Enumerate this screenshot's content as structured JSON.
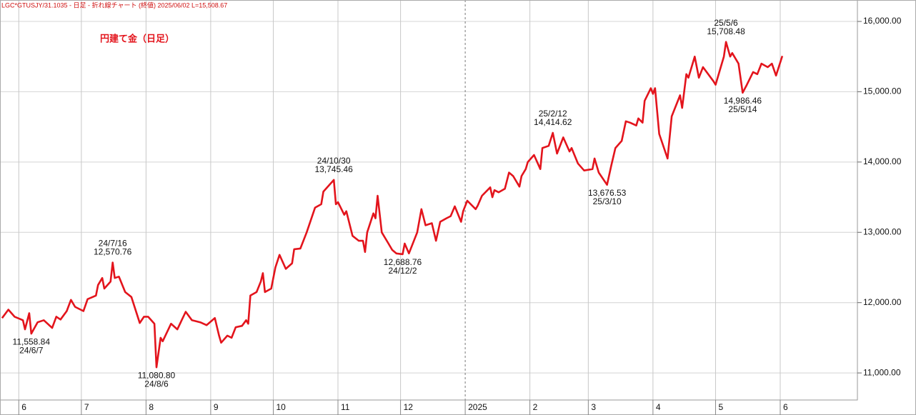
{
  "chart_data": {
    "type": "line",
    "header": "LGC*GTUSJY/31.1035 - 日足 - 折れ線チャート (終値) 2025/06/02 L=15,508.67",
    "title": "円建て金（日足）",
    "xlim": [
      "2024-05-23",
      "2025-07-08"
    ],
    "xticks": [
      {
        "value": "2024-06-01",
        "label": "6"
      },
      {
        "value": "2024-07-01",
        "label": "7"
      },
      {
        "value": "2024-08-01",
        "label": "8"
      },
      {
        "value": "2024-09-01",
        "label": "9"
      },
      {
        "value": "2024-10-01",
        "label": "10"
      },
      {
        "value": "2024-11-01",
        "label": "11"
      },
      {
        "value": "2024-12-01",
        "label": "12"
      },
      {
        "value": "2025-01-01",
        "label": "2025"
      },
      {
        "value": "2025-02-01",
        "label": "2"
      },
      {
        "value": "2025-03-01",
        "label": "3"
      },
      {
        "value": "2025-04-01",
        "label": "4"
      },
      {
        "value": "2025-05-01",
        "label": "5"
      },
      {
        "value": "2025-06-01",
        "label": "6"
      }
    ],
    "year_tick": "2025-01-01",
    "ylim": [
      10615,
      16305
    ],
    "yticks": [
      {
        "value": 11000,
        "label": "11,000.00"
      },
      {
        "value": 12000,
        "label": "12,000.00"
      },
      {
        "value": 13000,
        "label": "13,000.00"
      },
      {
        "value": 14000,
        "label": "14,000.00"
      },
      {
        "value": 15000,
        "label": "15,000.00"
      },
      {
        "value": 16000,
        "label": "16,000.00"
      }
    ],
    "grid": true,
    "x": [
      "2024-05-24",
      "2024-05-27",
      "2024-05-30",
      "2024-06-03",
      "2024-06-04",
      "2024-06-06",
      "2024-06-07",
      "2024-06-10",
      "2024-06-13",
      "2024-06-17",
      "2024-06-19",
      "2024-06-21",
      "2024-06-24",
      "2024-06-26",
      "2024-06-28",
      "2024-07-02",
      "2024-07-04",
      "2024-07-08",
      "2024-07-09",
      "2024-07-11",
      "2024-07-12",
      "2024-07-15",
      "2024-07-16",
      "2024-07-17",
      "2024-07-19",
      "2024-07-22",
      "2024-07-25",
      "2024-07-29",
      "2024-07-31",
      "2024-08-02",
      "2024-08-05",
      "2024-08-06",
      "2024-08-08",
      "2024-08-09",
      "2024-08-13",
      "2024-08-16",
      "2024-08-20",
      "2024-08-23",
      "2024-08-27",
      "2024-08-30",
      "2024-09-03",
      "2024-09-05",
      "2024-09-06",
      "2024-09-09",
      "2024-09-11",
      "2024-09-13",
      "2024-09-16",
      "2024-09-18",
      "2024-09-19",
      "2024-09-20",
      "2024-09-23",
      "2024-09-25",
      "2024-09-26",
      "2024-09-27",
      "2024-09-30",
      "2024-10-02",
      "2024-10-04",
      "2024-10-07",
      "2024-10-10",
      "2024-10-11",
      "2024-10-14",
      "2024-10-17",
      "2024-10-21",
      "2024-10-24",
      "2024-10-25",
      "2024-10-30",
      "2024-10-31",
      "2024-11-01",
      "2024-11-04",
      "2024-11-05",
      "2024-11-08",
      "2024-11-11",
      "2024-11-13",
      "2024-11-14",
      "2024-11-15",
      "2024-11-18",
      "2024-11-19",
      "2024-11-20",
      "2024-11-22",
      "2024-11-25",
      "2024-11-27",
      "2024-11-29",
      "2024-12-02",
      "2024-12-03",
      "2024-12-05",
      "2024-12-09",
      "2024-12-11",
      "2024-12-13",
      "2024-12-16",
      "2024-12-18",
      "2024-12-20",
      "2024-12-23",
      "2024-12-25",
      "2024-12-27",
      "2024-12-30",
      "2024-12-31",
      "2025-01-02",
      "2025-01-06",
      "2025-01-07",
      "2025-01-09",
      "2025-01-13",
      "2025-01-14",
      "2025-01-15",
      "2025-01-17",
      "2025-01-20",
      "2025-01-22",
      "2025-01-24",
      "2025-01-27",
      "2025-01-28",
      "2025-01-30",
      "2025-01-31",
      "2025-02-03",
      "2025-02-06",
      "2025-02-07",
      "2025-02-10",
      "2025-02-12",
      "2025-02-14",
      "2025-02-17",
      "2025-02-20",
      "2025-02-21",
      "2025-02-24",
      "2025-02-27",
      "2025-03-03",
      "2025-03-04",
      "2025-03-06",
      "2025-03-10",
      "2025-03-12",
      "2025-03-14",
      "2025-03-17",
      "2025-03-19",
      "2025-03-21",
      "2025-03-24",
      "2025-03-25",
      "2025-03-27",
      "2025-03-28",
      "2025-03-31",
      "2025-04-01",
      "2025-04-02",
      "2025-04-04",
      "2025-04-08",
      "2025-04-10",
      "2025-04-14",
      "2025-04-15",
      "2025-04-17",
      "2025-04-18",
      "2025-04-21",
      "2025-04-23",
      "2025-04-25",
      "2025-04-30",
      "2025-05-01",
      "2025-05-05",
      "2025-05-06",
      "2025-05-08",
      "2025-05-09",
      "2025-05-12",
      "2025-05-14",
      "2025-05-16",
      "2025-05-19",
      "2025-05-21",
      "2025-05-23",
      "2025-05-26",
      "2025-05-28",
      "2025-05-30",
      "2025-06-02"
    ],
    "series": [
      {
        "name": "終値",
        "color": "#e3141c",
        "values": [
          11780,
          11900,
          11800,
          11750,
          11620,
          11850,
          11558.84,
          11720,
          11750,
          11640,
          11800,
          11760,
          11880,
          12040,
          11940,
          11880,
          12050,
          12100,
          12250,
          12350,
          12200,
          12300,
          12570.76,
          12350,
          12370,
          12150,
          12080,
          11710,
          11800,
          11800,
          11700,
          11080.8,
          11500,
          11450,
          11700,
          11620,
          11870,
          11750,
          11720,
          11680,
          11780,
          11530,
          11430,
          11530,
          11500,
          11650,
          11670,
          11750,
          11700,
          12100,
          12150,
          12300,
          12420,
          12150,
          12200,
          12500,
          12680,
          12480,
          12560,
          12760,
          12770,
          13000,
          13350,
          13400,
          13580,
          13745.46,
          13400,
          13430,
          13250,
          13300,
          12950,
          12880,
          12880,
          12720,
          13000,
          13270,
          13200,
          13520,
          13000,
          12850,
          12750,
          12700,
          12688.76,
          12840,
          12700,
          13000,
          13330,
          13100,
          13130,
          12880,
          13150,
          13200,
          13230,
          13370,
          13150,
          13300,
          13450,
          13330,
          13380,
          13520,
          13640,
          13500,
          13600,
          13570,
          13620,
          13850,
          13800,
          13650,
          13800,
          13900,
          14000,
          14100,
          13900,
          14200,
          14230,
          14414.62,
          14120,
          14350,
          14150,
          14200,
          13980,
          13880,
          13900,
          14050,
          13850,
          13676.53,
          13950,
          14200,
          14300,
          14580,
          14560,
          14520,
          14620,
          14560,
          14870,
          15050,
          14970,
          15050,
          14400,
          14050,
          14650,
          14950,
          14770,
          15250,
          15200,
          15500,
          15200,
          15350,
          15150,
          15100,
          15500,
          15708.48,
          15500,
          15550,
          15400,
          14986.46,
          15100,
          15280,
          15250,
          15400,
          15350,
          15400,
          15230,
          15508.67
        ]
      }
    ],
    "annotations": [
      {
        "text": [
          "11,558.84",
          "24/6/7"
        ],
        "x": "2024-06-07",
        "y": 11558.84,
        "position": "below"
      },
      {
        "text": [
          "24/7/16",
          "12,570.76"
        ],
        "x": "2024-07-16",
        "y": 12570.76,
        "position": "above"
      },
      {
        "text": [
          "11,080.80",
          "24/8/6"
        ],
        "x": "2024-08-06",
        "y": 11080.8,
        "position": "below"
      },
      {
        "text": [
          "24/10/30",
          "13,745.46"
        ],
        "x": "2024-10-30",
        "y": 13745.46,
        "position": "above"
      },
      {
        "text": [
          "12,688.76",
          "24/12/2"
        ],
        "x": "2024-12-02",
        "y": 12688.76,
        "position": "below"
      },
      {
        "text": [
          "25/2/12",
          "14,414.62"
        ],
        "x": "2025-02-12",
        "y": 14414.62,
        "position": "above"
      },
      {
        "text": [
          "13,676.53",
          "25/3/10"
        ],
        "x": "2025-03-10",
        "y": 13676.53,
        "position": "below"
      },
      {
        "text": [
          "25/5/6",
          "15,708.48"
        ],
        "x": "2025-05-06",
        "y": 15708.48,
        "position": "above"
      },
      {
        "text": [
          "14,986.46",
          "25/5/14"
        ],
        "x": "2025-05-14",
        "y": 14986.46,
        "position": "below"
      }
    ]
  }
}
